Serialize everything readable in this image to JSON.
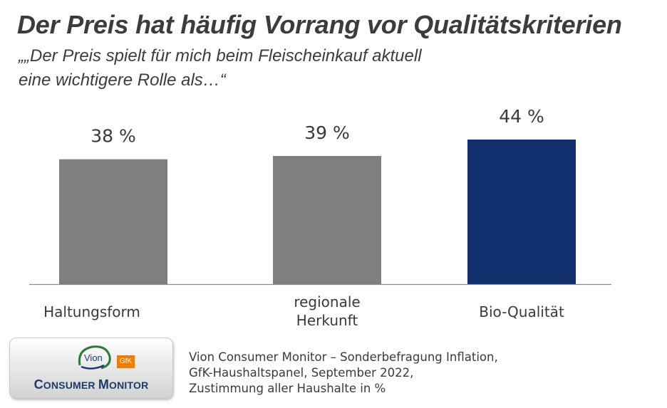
{
  "header": {
    "title": "Der Preis hat häufig Vorrang vor Qualitätskriterien",
    "subtitle_lines": [
      "„„Der Preis spielt für mich beim Fleischeinkauf aktuell",
      "eine wichtigere Rolle als…“"
    ]
  },
  "chart_data": {
    "type": "bar",
    "title": "Der Preis hat häufig Vorrang vor Qualitätskriterien",
    "categories": [
      [
        "Haltungsform"
      ],
      [
        "regionale",
        "Herkunft"
      ],
      [
        "Bio-Qualität"
      ]
    ],
    "values": [
      38,
      39,
      44
    ],
    "value_labels": [
      "38 %",
      "39 %",
      "44 %"
    ],
    "unit": "%",
    "colors": [
      "#7f7f7f",
      "#7f7f7f",
      "#13306e"
    ],
    "ylim": [
      0,
      44
    ],
    "grid": false,
    "legend": "none"
  },
  "logo": {
    "vion": "Vion",
    "gfk": "GfK",
    "name_parts": [
      "C",
      "ONSUMER ",
      "M",
      "ONITOR"
    ]
  },
  "source": {
    "lines": [
      "Vion Consumer Monitor – Sonderbefragung Inflation,",
      "GfK-Haushaltspanel, September 2022,",
      "Zustimmung aller Haushalte in %"
    ]
  }
}
